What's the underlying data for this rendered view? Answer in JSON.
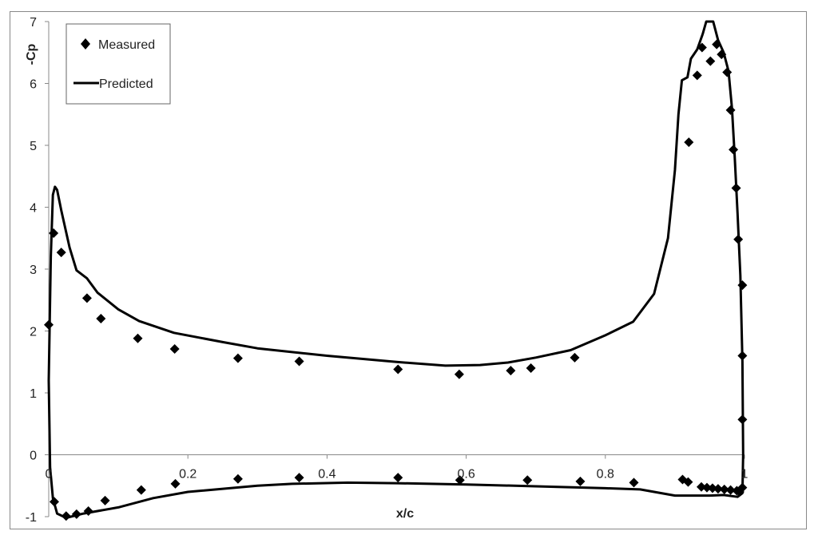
{
  "chart_data": {
    "type": "scatter",
    "xlabel": "x/c",
    "ylabel": "-Cp",
    "xlim": [
      0,
      1
    ],
    "ylim": [
      -1,
      7
    ],
    "x_ticks": [
      "0",
      "0.2",
      "0.4",
      "0.6",
      "0.8",
      "1"
    ],
    "y_ticks": [
      "-1",
      "0",
      "1",
      "2",
      "3",
      "4",
      "5",
      "6",
      "7"
    ],
    "grid": false,
    "legend": {
      "position": "top-left",
      "entries": [
        {
          "label": "Measured",
          "marker": "diamond"
        },
        {
          "label": "Predicted",
          "marker": "line"
        }
      ]
    },
    "series": [
      {
        "name": "Measured",
        "type": "scatter",
        "color": "#000000",
        "points": [
          [
            0.0,
            2.1
          ],
          [
            0.007,
            3.58
          ],
          [
            0.018,
            3.27
          ],
          [
            0.055,
            2.53
          ],
          [
            0.075,
            2.2
          ],
          [
            0.128,
            1.88
          ],
          [
            0.181,
            1.71
          ],
          [
            0.272,
            1.56
          ],
          [
            0.36,
            1.51
          ],
          [
            0.502,
            1.38
          ],
          [
            0.59,
            1.3
          ],
          [
            0.664,
            1.36
          ],
          [
            0.693,
            1.4
          ],
          [
            0.756,
            1.57
          ],
          [
            0.92,
            5.05
          ],
          [
            0.932,
            6.13
          ],
          [
            0.939,
            6.58
          ],
          [
            0.951,
            6.36
          ],
          [
            0.96,
            6.63
          ],
          [
            0.967,
            6.47
          ],
          [
            0.975,
            6.18
          ],
          [
            0.98,
            5.57
          ],
          [
            0.984,
            4.93
          ],
          [
            0.988,
            4.31
          ],
          [
            0.991,
            3.48
          ],
          [
            0.997,
            2.74
          ],
          [
            0.997,
            1.6
          ],
          [
            0.997,
            0.57
          ],
          [
            0.997,
            -0.53
          ],
          [
            0.008,
            -0.76
          ],
          [
            0.025,
            -0.99
          ],
          [
            0.04,
            -0.96
          ],
          [
            0.057,
            -0.91
          ],
          [
            0.081,
            -0.74
          ],
          [
            0.133,
            -0.57
          ],
          [
            0.182,
            -0.47
          ],
          [
            0.272,
            -0.39
          ],
          [
            0.36,
            -0.37
          ],
          [
            0.502,
            -0.37
          ],
          [
            0.591,
            -0.41
          ],
          [
            0.688,
            -0.41
          ],
          [
            0.764,
            -0.43
          ],
          [
            0.841,
            -0.45
          ],
          [
            0.911,
            -0.4
          ],
          [
            0.919,
            -0.44
          ],
          [
            0.938,
            -0.52
          ],
          [
            0.946,
            -0.53
          ],
          [
            0.954,
            -0.54
          ],
          [
            0.962,
            -0.55
          ],
          [
            0.971,
            -0.56
          ],
          [
            0.98,
            -0.57
          ],
          [
            0.989,
            -0.58
          ],
          [
            0.993,
            -0.6
          ]
        ]
      },
      {
        "name": "Predicted",
        "type": "line",
        "color": "#000000",
        "points": [
          [
            0.0,
            1.2
          ],
          [
            0.003,
            3.2
          ],
          [
            0.006,
            4.2
          ],
          [
            0.009,
            4.33
          ],
          [
            0.012,
            4.28
          ],
          [
            0.018,
            3.95
          ],
          [
            0.03,
            3.35
          ],
          [
            0.04,
            2.98
          ],
          [
            0.055,
            2.85
          ],
          [
            0.07,
            2.62
          ],
          [
            0.1,
            2.35
          ],
          [
            0.13,
            2.16
          ],
          [
            0.18,
            1.97
          ],
          [
            0.25,
            1.82
          ],
          [
            0.3,
            1.72
          ],
          [
            0.4,
            1.6
          ],
          [
            0.5,
            1.5
          ],
          [
            0.57,
            1.44
          ],
          [
            0.62,
            1.45
          ],
          [
            0.66,
            1.49
          ],
          [
            0.7,
            1.57
          ],
          [
            0.75,
            1.69
          ],
          [
            0.8,
            1.93
          ],
          [
            0.84,
            2.15
          ],
          [
            0.87,
            2.6
          ],
          [
            0.89,
            3.5
          ],
          [
            0.9,
            4.6
          ],
          [
            0.905,
            5.5
          ],
          [
            0.91,
            6.05
          ],
          [
            0.918,
            6.1
          ],
          [
            0.923,
            6.4
          ],
          [
            0.932,
            6.55
          ],
          [
            0.94,
            6.8
          ],
          [
            0.945,
            7.0
          ],
          [
            0.955,
            7.0
          ],
          [
            0.962,
            6.7
          ],
          [
            0.97,
            6.5
          ],
          [
            0.977,
            6.2
          ],
          [
            0.982,
            5.6
          ],
          [
            0.986,
            4.8
          ],
          [
            0.99,
            3.9
          ],
          [
            0.994,
            2.9
          ],
          [
            0.997,
            1.5
          ],
          [
            0.998,
            0.0
          ],
          [
            0.997,
            -0.62
          ],
          [
            0.99,
            -0.68
          ],
          [
            0.97,
            -0.65
          ],
          [
            0.95,
            -0.66
          ],
          [
            0.9,
            -0.66
          ],
          [
            0.85,
            -0.56
          ],
          [
            0.8,
            -0.54
          ],
          [
            0.7,
            -0.51
          ],
          [
            0.6,
            -0.48
          ],
          [
            0.5,
            -0.46
          ],
          [
            0.43,
            -0.45
          ],
          [
            0.35,
            -0.47
          ],
          [
            0.3,
            -0.5
          ],
          [
            0.2,
            -0.6
          ],
          [
            0.15,
            -0.7
          ],
          [
            0.1,
            -0.85
          ],
          [
            0.05,
            -0.95
          ],
          [
            0.025,
            -1.02
          ],
          [
            0.012,
            -0.95
          ],
          [
            0.006,
            -0.7
          ],
          [
            0.002,
            -0.2
          ],
          [
            0.0,
            1.2
          ]
        ]
      }
    ]
  }
}
